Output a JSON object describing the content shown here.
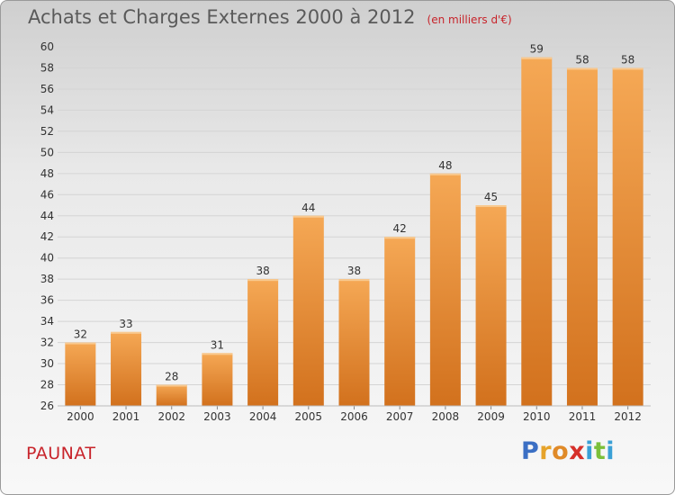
{
  "header": {
    "title": "Achats et Charges Externes 2000 à 2012",
    "unit": "(en milliers d'€)"
  },
  "location": {
    "name": "PAUNAT"
  },
  "logo": {
    "text": "Proxiti",
    "letters": [
      {
        "ch": "P",
        "color": "#3b6fc4"
      },
      {
        "ch": "r",
        "color": "#e6a32a"
      },
      {
        "ch": "o",
        "color": "#e08a28"
      },
      {
        "ch": "x",
        "color": "#d6302a"
      },
      {
        "ch": "i",
        "color": "#3aa0d6"
      },
      {
        "ch": "t",
        "color": "#7bbf3a"
      },
      {
        "ch": "i",
        "color": "#3aa0d6"
      }
    ]
  },
  "colors": {
    "bar_top": "#f5a855",
    "bar_bottom": "#d2711d",
    "grid": "#d4d4d4",
    "axis_text": "#333333",
    "value_text": "#333333"
  },
  "chart_data": {
    "type": "bar",
    "categories": [
      "2000",
      "2001",
      "2002",
      "2003",
      "2004",
      "2005",
      "2006",
      "2007",
      "2008",
      "2009",
      "2010",
      "2011",
      "2012"
    ],
    "values": [
      32,
      33,
      28,
      31,
      38,
      44,
      38,
      42,
      48,
      45,
      59,
      58,
      58
    ],
    "ylim": [
      26,
      60
    ],
    "yticks": [
      26,
      28,
      30,
      32,
      34,
      36,
      38,
      40,
      42,
      44,
      46,
      48,
      50,
      52,
      54,
      56,
      58,
      60
    ],
    "grid": true
  }
}
